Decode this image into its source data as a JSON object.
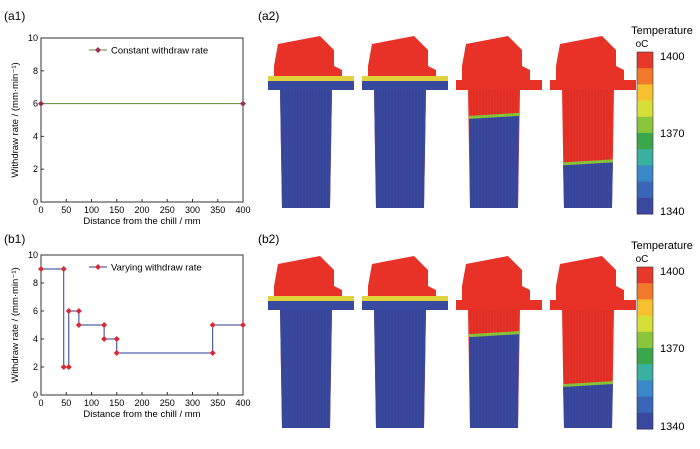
{
  "panel_labels": {
    "a1": "(a1)",
    "a2": "(a2)",
    "b1": "(b1)",
    "b2": "(b2)"
  },
  "colors": {
    "line_a": "#5a8a3a",
    "marker_a": "#9b2d57",
    "line_b": "#2a3a9a",
    "marker_b": "#d62a34",
    "hot": "#e83228",
    "cold": "#3a49a0"
  },
  "colorbar": {
    "title": "Temperature",
    "unit": "oC",
    "ticks": [
      "1400",
      "1370",
      "1340"
    ],
    "colors": [
      "#e8382a",
      "#f07a2a",
      "#f6c030",
      "#d6de3a",
      "#8ac63a",
      "#3aa84a",
      "#3ab0a0",
      "#3a88c8",
      "#3a66b8",
      "#3a48a0"
    ]
  },
  "chart_data": [
    {
      "type": "line",
      "panel": "a1",
      "xlabel": "Distance from the chill / mm",
      "ylabel": "Withdraw rate / (mm·min⁻¹)",
      "xlim": [
        0,
        400
      ],
      "ylim": [
        0,
        10
      ],
      "xticks": [
        "0",
        "50",
        "100",
        "150",
        "200",
        "250",
        "300",
        "350",
        "400"
      ],
      "yticks": [
        "0",
        "2",
        "4",
        "6",
        "8",
        "10"
      ],
      "legend": "top-right",
      "series": [
        {
          "name": "Constant withdraw rate",
          "x": [
            0,
            400
          ],
          "y": [
            6,
            6
          ]
        }
      ]
    },
    {
      "type": "line",
      "panel": "b1",
      "xlabel": "Distance from the chill / mm",
      "ylabel": "Withdraw rate / (mm·min⁻¹)",
      "xlim": [
        0,
        400
      ],
      "ylim": [
        0,
        10
      ],
      "xticks": [
        "0",
        "50",
        "100",
        "150",
        "200",
        "250",
        "300",
        "350",
        "400"
      ],
      "yticks": [
        "0",
        "2",
        "4",
        "6",
        "8",
        "10"
      ],
      "legend": "top-right",
      "series": [
        {
          "name": "Varying withdraw rate",
          "x": [
            0,
            45,
            45,
            55,
            55,
            75,
            75,
            125,
            125,
            150,
            150,
            340,
            340,
            400
          ],
          "y": [
            9,
            9,
            2,
            2,
            6,
            6,
            5,
            5,
            4,
            4,
            3,
            3,
            5,
            5
          ]
        }
      ]
    }
  ],
  "simulations": {
    "a2": [
      0.91,
      0.77,
      0.55,
      0.28
    ],
    "b2": [
      0.82,
      0.81,
      0.56,
      0.27
    ]
  }
}
